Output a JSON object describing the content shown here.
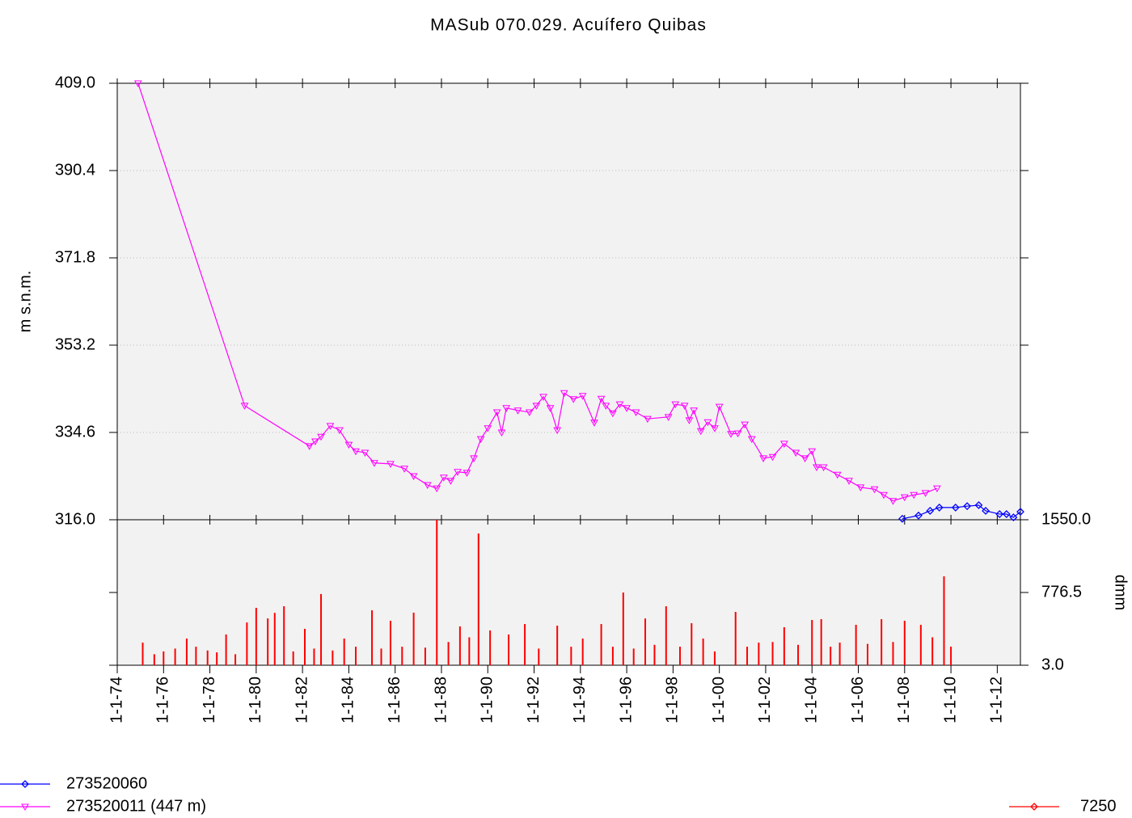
{
  "chart_data": [
    {
      "type": "line",
      "title": "MASub 070.029. Acuífero Quibas",
      "y_label": "m s.n.m.",
      "xlim": [
        1974,
        2013
      ],
      "ylim": [
        316,
        409
      ],
      "yticks": [
        {
          "value": 316,
          "label": "316.0"
        },
        {
          "value": 334.6,
          "label": "334.6"
        },
        {
          "value": 353.2,
          "label": "353.2"
        },
        {
          "value": 371.8,
          "label": "371.8"
        },
        {
          "value": 390.4,
          "label": "390.4"
        },
        {
          "value": 409,
          "label": "409.0"
        }
      ],
      "grid": true,
      "series": [
        {
          "name": "273520060",
          "color": "#0000ff",
          "marker": "diamond",
          "x": [
            2007.9,
            2008.6,
            2009.1,
            2009.5,
            2010.2,
            2010.7,
            2011.2,
            2011.5,
            2012.1,
            2012.4,
            2012.7,
            2013.0
          ],
          "values": [
            316.2,
            316.9,
            317.9,
            318.6,
            318.6,
            318.9,
            319.1,
            317.9,
            317.2,
            317.2,
            316.5,
            317.7
          ]
        },
        {
          "name": "273520011 (447 m)",
          "color": "#ff00ff",
          "marker": "triangle-down",
          "x": [
            1974.9,
            1979.5,
            1982.3,
            1982.55,
            1982.8,
            1983.2,
            1983.6,
            1984.0,
            1984.3,
            1984.7,
            1985.1,
            1985.8,
            1986.4,
            1986.8,
            1987.4,
            1987.8,
            1988.1,
            1988.4,
            1988.7,
            1989.1,
            1989.4,
            1989.7,
            1990.0,
            1990.4,
            1990.6,
            1990.8,
            1991.3,
            1991.8,
            1992.1,
            1992.4,
            1992.7,
            1993.0,
            1993.3,
            1993.7,
            1994.1,
            1994.6,
            1994.9,
            1995.1,
            1995.4,
            1995.7,
            1996.0,
            1996.4,
            1996.9,
            1997.8,
            1998.1,
            1998.5,
            1998.7,
            1998.9,
            1999.2,
            1999.5,
            1999.8,
            2000.0,
            2000.5,
            2000.8,
            2001.1,
            2001.4,
            2001.9,
            2002.3,
            2002.8,
            2003.3,
            2003.7,
            2004.0,
            2004.2,
            2004.5,
            2005.1,
            2005.6,
            2006.1,
            2006.7,
            2007.1,
            2007.5,
            2008.0,
            2008.4,
            2008.9,
            2009.4
          ],
          "values": [
            409.0,
            340.3,
            331.7,
            332.7,
            333.7,
            336.0,
            335.1,
            332.0,
            330.6,
            330.3,
            328.1,
            327.9,
            326.9,
            325.3,
            323.4,
            322.7,
            325.0,
            324.3,
            326.2,
            326.0,
            329.1,
            333.2,
            335.5,
            338.9,
            334.6,
            339.8,
            339.3,
            338.9,
            340.3,
            342.2,
            339.8,
            335.1,
            343.0,
            341.7,
            342.4,
            336.7,
            341.8,
            340.3,
            338.7,
            340.6,
            339.8,
            338.9,
            337.5,
            337.9,
            340.6,
            340.3,
            337.2,
            339.3,
            334.9,
            336.8,
            335.5,
            340.1,
            334.3,
            334.4,
            336.3,
            333.2,
            329.1,
            329.4,
            332.2,
            330.3,
            329.1,
            330.6,
            327.2,
            327.2,
            325.6,
            324.3,
            322.9,
            322.5,
            321.3,
            320.0,
            320.8,
            321.3,
            321.7,
            322.7
          ]
        }
      ]
    },
    {
      "type": "bar",
      "y2_label": "dmm",
      "xlim": [
        1974,
        2013
      ],
      "xticks": [
        {
          "value": 1974,
          "label": "1-1-74"
        },
        {
          "value": 1976,
          "label": "1-1-76"
        },
        {
          "value": 1978,
          "label": "1-1-78"
        },
        {
          "value": 1980,
          "label": "1-1-80"
        },
        {
          "value": 1982,
          "label": "1-1-82"
        },
        {
          "value": 1984,
          "label": "1-1-84"
        },
        {
          "value": 1986,
          "label": "1-1-86"
        },
        {
          "value": 1988,
          "label": "1-1-88"
        },
        {
          "value": 1990,
          "label": "1-1-90"
        },
        {
          "value": 1992,
          "label": "1-1-92"
        },
        {
          "value": 1994,
          "label": "1-1-94"
        },
        {
          "value": 1996,
          "label": "1-1-96"
        },
        {
          "value": 1998,
          "label": "1-1-98"
        },
        {
          "value": 2000,
          "label": "1-1-00"
        },
        {
          "value": 2002,
          "label": "1-1-02"
        },
        {
          "value": 2004,
          "label": "1-1-04"
        },
        {
          "value": 2006,
          "label": "1-1-06"
        },
        {
          "value": 2008,
          "label": "1-1-08"
        },
        {
          "value": 2010,
          "label": "1-1-10"
        },
        {
          "value": 2012,
          "label": "1-1-12"
        }
      ],
      "y2lim": [
        3,
        1550
      ],
      "y2ticks": [
        {
          "value": 3,
          "label": "3.0"
        },
        {
          "value": 776.5,
          "label": "776.5"
        },
        {
          "value": 1550,
          "label": "1550.0"
        }
      ],
      "series": [
        {
          "name": "7250",
          "color": "#ff0000",
          "axis": "y2",
          "x": [
            1975.1,
            1975.6,
            1976.0,
            1976.5,
            1977.0,
            1977.4,
            1977.9,
            1978.3,
            1978.7,
            1979.1,
            1979.6,
            1980.0,
            1980.5,
            1980.8,
            1981.2,
            1981.6,
            1982.1,
            1982.5,
            1982.8,
            1983.3,
            1983.8,
            1984.3,
            1985.0,
            1985.4,
            1985.8,
            1986.3,
            1986.8,
            1987.3,
            1987.8,
            1988.3,
            1988.8,
            1989.2,
            1989.6,
            1990.1,
            1990.9,
            1991.6,
            1992.2,
            1993.0,
            1993.6,
            1994.1,
            1994.9,
            1995.4,
            1995.85,
            1996.3,
            1996.8,
            1997.2,
            1997.7,
            1998.3,
            1998.8,
            1999.3,
            1999.8,
            2000.7,
            2001.2,
            2001.7,
            2002.3,
            2002.8,
            2003.4,
            2004.0,
            2004.4,
            2004.8,
            2005.2,
            2005.9,
            2006.4,
            2007.0,
            2007.5,
            2008.0,
            2008.7,
            2009.2,
            2009.7,
            2010.0
          ],
          "values": [
            244,
            120,
            150,
            180,
            287,
            200,
            160,
            140,
            330,
            120,
            458,
            613,
            501,
            560,
            630,
            150,
            390,
            180,
            760,
            160,
            287,
            200,
            587,
            180,
            476,
            200,
            562,
            190,
            1550,
            250,
            416,
            300,
            1404,
            373,
            330,
            441,
            180,
            424,
            200,
            287,
            441,
            200,
            776,
            180,
            500,
            220,
            630,
            200,
            450,
            287,
            150,
            570,
            200,
            244,
            250,
            407,
            220,
            484,
            493,
            200,
            244,
            433,
            230,
            493,
            250,
            476,
            433,
            300,
            948,
            201
          ]
        }
      ]
    }
  ]
}
